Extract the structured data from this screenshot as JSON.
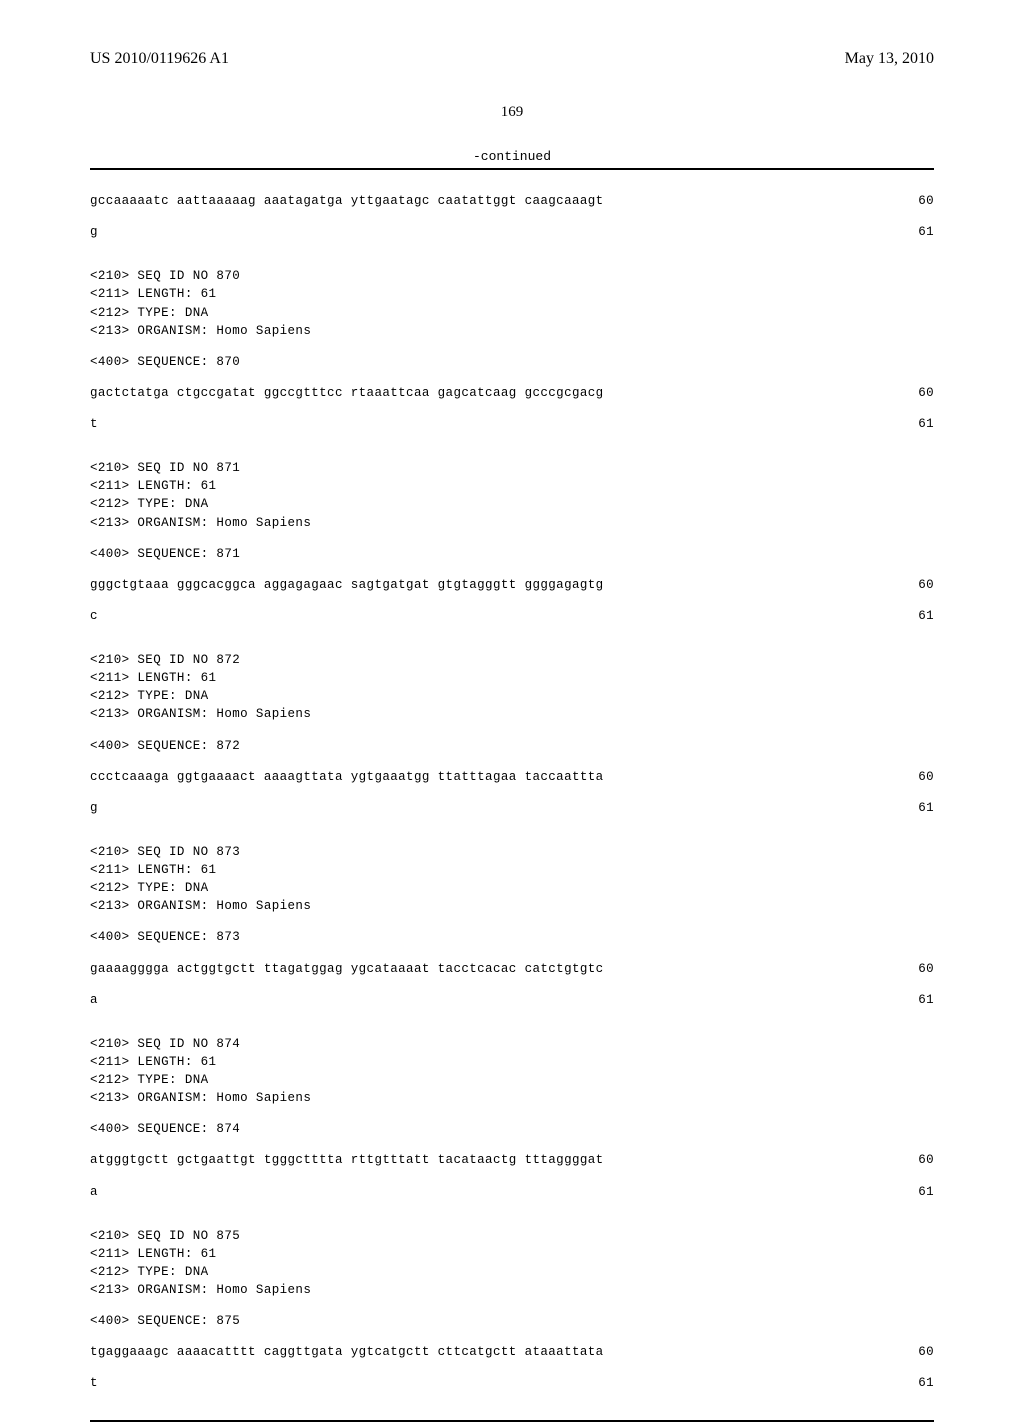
{
  "header": {
    "pub_number": "US 2010/0119626 A1",
    "pub_date": "May 13, 2010"
  },
  "page_number": "169",
  "continued_label": "-continued",
  "entries": [
    {
      "top_seq": {
        "blocks": "gccaaaaatc aattaaaaag aaatagatga yttgaatagc caatattggt caagcaaagt",
        "num": "60"
      },
      "tail": {
        "blocks": "g",
        "num": "61"
      },
      "meta": [
        "<210> SEQ ID NO 870",
        "<211> LENGTH: 61",
        "<212> TYPE: DNA",
        "<213> ORGANISM: Homo Sapiens"
      ],
      "seq_label": "<400> SEQUENCE: 870"
    },
    {
      "top_seq": {
        "blocks": "gactctatga ctgccgatat ggccgtttcc rtaaattcaa gagcatcaag gcccgcgacg",
        "num": "60"
      },
      "tail": {
        "blocks": "t",
        "num": "61"
      },
      "meta": [
        "<210> SEQ ID NO 871",
        "<211> LENGTH: 61",
        "<212> TYPE: DNA",
        "<213> ORGANISM: Homo Sapiens"
      ],
      "seq_label": "<400> SEQUENCE: 871"
    },
    {
      "top_seq": {
        "blocks": "gggctgtaaa gggcacggca aggagagaac sagtgatgat gtgtagggtt ggggagagtg",
        "num": "60"
      },
      "tail": {
        "blocks": "c",
        "num": "61"
      },
      "meta": [
        "<210> SEQ ID NO 872",
        "<211> LENGTH: 61",
        "<212> TYPE: DNA",
        "<213> ORGANISM: Homo Sapiens"
      ],
      "seq_label": "<400> SEQUENCE: 872"
    },
    {
      "top_seq": {
        "blocks": "ccctcaaaga ggtgaaaact aaaagttata ygtgaaatgg ttatttagaa taccaattta",
        "num": "60"
      },
      "tail": {
        "blocks": "g",
        "num": "61"
      },
      "meta": [
        "<210> SEQ ID NO 873",
        "<211> LENGTH: 61",
        "<212> TYPE: DNA",
        "<213> ORGANISM: Homo Sapiens"
      ],
      "seq_label": "<400> SEQUENCE: 873"
    },
    {
      "top_seq": {
        "blocks": "gaaaagggga actggtgctt ttagatggag ygcataaaat tacctcacac catctgtgtc",
        "num": "60"
      },
      "tail": {
        "blocks": "a",
        "num": "61"
      },
      "meta": [
        "<210> SEQ ID NO 874",
        "<211> LENGTH: 61",
        "<212> TYPE: DNA",
        "<213> ORGANISM: Homo Sapiens"
      ],
      "seq_label": "<400> SEQUENCE: 874"
    },
    {
      "top_seq": {
        "blocks": "atgggtgctt gctgaattgt tgggctttta rttgtttatt tacataactg tttaggggat",
        "num": "60"
      },
      "tail": {
        "blocks": "a",
        "num": "61"
      },
      "meta": [
        "<210> SEQ ID NO 875",
        "<211> LENGTH: 61",
        "<212> TYPE: DNA",
        "<213> ORGANISM: Homo Sapiens"
      ],
      "seq_label": "<400> SEQUENCE: 875"
    },
    {
      "top_seq": {
        "blocks": "tgaggaaagc aaaacatttt caggttgata ygtcatgctt cttcatgctt ataaattata",
        "num": "60"
      },
      "tail": {
        "blocks": "t",
        "num": "61"
      },
      "meta": null,
      "seq_label": null
    }
  ]
}
